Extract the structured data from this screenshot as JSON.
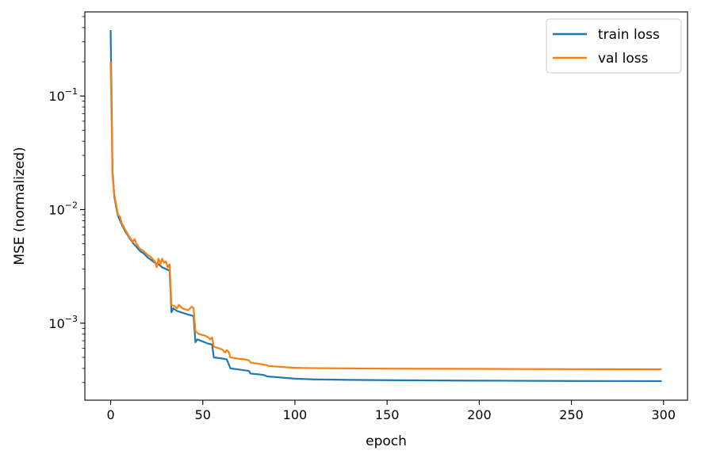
{
  "chart_data": {
    "type": "line",
    "title": "",
    "xlabel": "epoch",
    "ylabel": "MSE (normalized)",
    "xlim": [
      -14,
      313
    ],
    "ylim": [
      0.00021,
      0.55
    ],
    "yscale": "log",
    "grid": false,
    "legend": "top-right",
    "x_ticks": [
      0,
      50,
      100,
      150,
      200,
      250,
      300
    ],
    "y_ticks": [
      {
        "value": 0.1,
        "base": "10",
        "exp": "−1"
      },
      {
        "value": 0.01,
        "base": "10",
        "exp": "−2"
      },
      {
        "value": 0.001,
        "base": "10",
        "exp": "−3"
      }
    ],
    "series": [
      {
        "name": "train loss",
        "color": "#1f77b4",
        "points": [
          [
            0,
            0.38
          ],
          [
            1,
            0.022
          ],
          [
            2,
            0.013
          ],
          [
            3,
            0.0105
          ],
          [
            4,
            0.0088
          ],
          [
            6,
            0.0074
          ],
          [
            8,
            0.0064
          ],
          [
            10,
            0.0057
          ],
          [
            12,
            0.0051
          ],
          [
            14,
            0.0047
          ],
          [
            16,
            0.0043
          ],
          [
            18,
            0.0041
          ],
          [
            20,
            0.0038
          ],
          [
            22,
            0.0036
          ],
          [
            24,
            0.0034
          ],
          [
            26,
            0.0033
          ],
          [
            28,
            0.0031
          ],
          [
            30,
            0.003
          ],
          [
            32,
            0.0029
          ],
          [
            33,
            0.00125
          ],
          [
            34,
            0.00135
          ],
          [
            36,
            0.00128
          ],
          [
            38,
            0.00125
          ],
          [
            40,
            0.00122
          ],
          [
            42,
            0.00119
          ],
          [
            44,
            0.00117
          ],
          [
            45,
            0.00115
          ],
          [
            46,
            0.00068
          ],
          [
            47,
            0.00072
          ],
          [
            49,
            0.0007
          ],
          [
            51,
            0.00068
          ],
          [
            53,
            0.00066
          ],
          [
            55,
            0.00065
          ],
          [
            56,
            0.0005
          ],
          [
            60,
            0.00049
          ],
          [
            63,
            0.00048
          ],
          [
            65,
            0.0004
          ],
          [
            70,
            0.00039
          ],
          [
            75,
            0.00038
          ],
          [
            76,
            0.00036
          ],
          [
            80,
            0.000355
          ],
          [
            83,
            0.00035
          ],
          [
            85,
            0.00034
          ],
          [
            90,
            0.000335
          ],
          [
            95,
            0.00033
          ],
          [
            100,
            0.000325
          ],
          [
            110,
            0.00032
          ],
          [
            130,
            0.000317
          ],
          [
            150,
            0.000315
          ],
          [
            200,
            0.000312
          ],
          [
            250,
            0.00031
          ],
          [
            299,
            0.000309
          ]
        ]
      },
      {
        "name": "val loss",
        "color": "#ff7f0e",
        "points": [
          [
            0,
            0.2
          ],
          [
            1,
            0.02
          ],
          [
            2,
            0.0135
          ],
          [
            3,
            0.011
          ],
          [
            4,
            0.009
          ],
          [
            5,
            0.0087
          ],
          [
            6,
            0.0076
          ],
          [
            8,
            0.0066
          ],
          [
            10,
            0.0058
          ],
          [
            12,
            0.0052
          ],
          [
            13,
            0.0055
          ],
          [
            14,
            0.005
          ],
          [
            16,
            0.0045
          ],
          [
            18,
            0.0043
          ],
          [
            20,
            0.004
          ],
          [
            22,
            0.0038
          ],
          [
            24,
            0.0035
          ],
          [
            25,
            0.0031
          ],
          [
            26,
            0.0037
          ],
          [
            27,
            0.0033
          ],
          [
            28,
            0.0037
          ],
          [
            29,
            0.0034
          ],
          [
            30,
            0.0035
          ],
          [
            31,
            0.0031
          ],
          [
            32,
            0.0033
          ],
          [
            33,
            0.00145
          ],
          [
            35,
            0.0014
          ],
          [
            36,
            0.00135
          ],
          [
            37,
            0.00145
          ],
          [
            39,
            0.00135
          ],
          [
            42,
            0.0013
          ],
          [
            44,
            0.0014
          ],
          [
            45,
            0.00135
          ],
          [
            46,
            0.00085
          ],
          [
            48,
            0.0008
          ],
          [
            51,
            0.00078
          ],
          [
            53,
            0.00075
          ],
          [
            54,
            0.00072
          ],
          [
            55,
            0.00075
          ],
          [
            56,
            0.00062
          ],
          [
            59,
            0.0006
          ],
          [
            61,
            0.00058
          ],
          [
            62,
            0.00055
          ],
          [
            63,
            0.00058
          ],
          [
            64,
            0.00056
          ],
          [
            65,
            0.0005
          ],
          [
            68,
            0.00049
          ],
          [
            70,
            0.000485
          ],
          [
            73,
            0.00048
          ],
          [
            75,
            0.00047
          ],
          [
            76,
            0.00045
          ],
          [
            80,
            0.00044
          ],
          [
            84,
            0.00043
          ],
          [
            86,
            0.00042
          ],
          [
            90,
            0.000415
          ],
          [
            95,
            0.00041
          ],
          [
            100,
            0.000405
          ],
          [
            110,
            0.000402
          ],
          [
            130,
            0.0004
          ],
          [
            150,
            0.000398
          ],
          [
            200,
            0.000396
          ],
          [
            250,
            0.000394
          ],
          [
            299,
            0.000393
          ]
        ]
      }
    ]
  }
}
